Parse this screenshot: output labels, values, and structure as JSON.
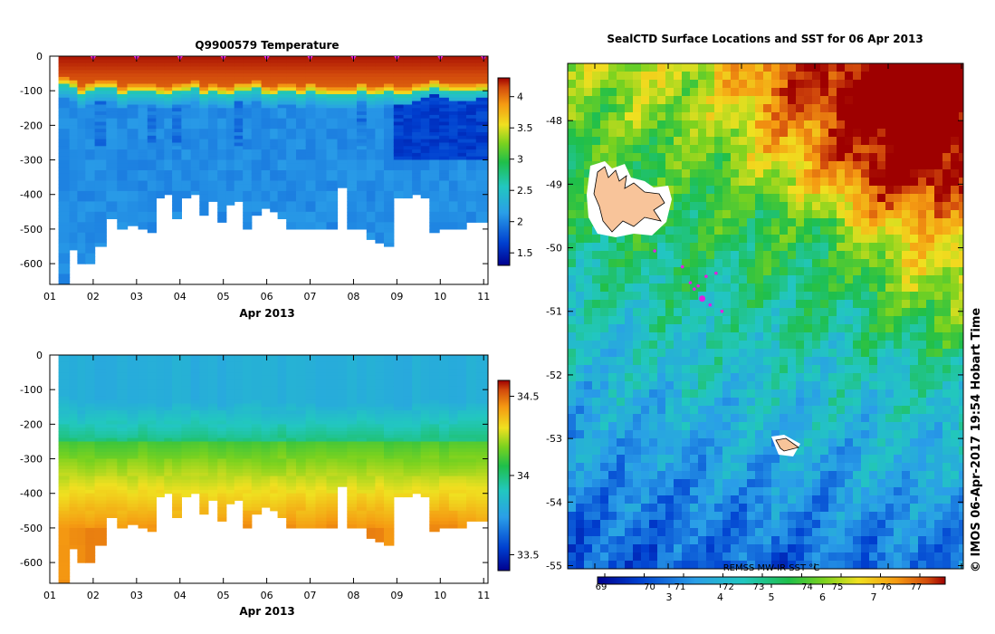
{
  "chart_data": [
    {
      "type": "heatmap",
      "title": "Q9900579  Temperature",
      "xlabel": "Apr 2013",
      "x_ticks": [
        "01",
        "02",
        "03",
        "04",
        "05",
        "06",
        "07",
        "08",
        "09",
        "10",
        "11"
      ],
      "y_ticks": [
        "0",
        "-100",
        "-200",
        "-300",
        "-400",
        "-500",
        "-600"
      ],
      "ylim": [
        -660,
        0
      ],
      "xlim": [
        1,
        11.1
      ],
      "colorbar": {
        "min": 1.3,
        "max": 4.3,
        "ticks": [
          "4",
          "3.5",
          "3",
          "2.5",
          "2",
          "1.5"
        ],
        "tick_values": [
          4,
          3.5,
          3,
          2.5,
          2,
          1.5
        ]
      },
      "profile_days": [
        1.35,
        1.55,
        1.72,
        1.92,
        2.15,
        2.45,
        2.65,
        2.92,
        3.15,
        3.35,
        3.55,
        3.72,
        3.92,
        4.15,
        4.35,
        4.55,
        4.75,
        4.98,
        5.15,
        5.35,
        5.55,
        5.75,
        6.0,
        6.15,
        6.35,
        6.55,
        6.8,
        7.0,
        7.25,
        7.5,
        7.75,
        7.95,
        8.2,
        8.4,
        8.6,
        8.8,
        9.05,
        9.25,
        9.45,
        9.65,
        9.85,
        10.1,
        10.3,
        10.5,
        10.7,
        10.95
      ],
      "profile_max_depth": [
        665,
        560,
        600,
        595,
        545,
        470,
        495,
        490,
        495,
        505,
        410,
        400,
        465,
        410,
        400,
        455,
        420,
        475,
        430,
        420,
        500,
        460,
        435,
        450,
        470,
        500,
        495,
        495,
        495,
        500,
        380,
        495,
        500,
        525,
        540,
        545,
        410,
        410,
        400,
        410,
        505,
        500,
        500,
        500,
        480,
        480
      ],
      "mixed_layer_depth": [
        80,
        85,
        110,
        95,
        90,
        90,
        110,
        100,
        100,
        100,
        105,
        110,
        100,
        95,
        90,
        110,
        100,
        105,
        110,
        95,
        95,
        90,
        105,
        110,
        100,
        100,
        110,
        95,
        105,
        110,
        110,
        110,
        95,
        110,
        105,
        100,
        110,
        110,
        100,
        95,
        85,
        95,
        100,
        100,
        100,
        95
      ],
      "deep_cold_layer": [
        [
          -160,
          -300,
          9.0,
          10.9
        ]
      ],
      "surface_markers": [
        2,
        3,
        4,
        5,
        6,
        7,
        8,
        9,
        10,
        11
      ]
    },
    {
      "type": "heatmap",
      "title": "",
      "xlabel": "Apr 2013",
      "x_ticks": [
        "01",
        "02",
        "03",
        "04",
        "05",
        "06",
        "07",
        "08",
        "09",
        "10",
        "11"
      ],
      "y_ticks": [
        "0",
        "-100",
        "-200",
        "-300",
        "-400",
        "-500",
        "-600"
      ],
      "ylim": [
        -660,
        0
      ],
      "xlim": [
        1,
        11.1
      ],
      "colorbar": {
        "min": 33.4,
        "max": 34.6,
        "ticks": [
          "34.5",
          "34",
          "33.5"
        ],
        "tick_values": [
          34.5,
          34,
          33.5
        ]
      }
    },
    {
      "type": "heatmap",
      "title": "SealCTD Surface Locations and SST for 06 Apr 2013",
      "y_ticks": [
        "-48",
        "-49",
        "-50",
        "-51",
        "-52",
        "-53",
        "-54",
        "-55"
      ],
      "y_tick_values": [
        -48,
        -49,
        -50,
        -51,
        -52,
        -53,
        -54,
        -55
      ],
      "ylim": [
        -55.05,
        -47.1
      ],
      "colorbar_label": "REMSS MW-IR SST °C",
      "colorbar_top_ticks": [
        "69",
        "70",
        "71",
        "72",
        "73",
        "74",
        "75",
        "76",
        "77"
      ],
      "colorbar_bottom_ticks": [
        "3",
        "4",
        "5",
        "6",
        "7"
      ],
      "colorbar_bottom_values": [
        3,
        4,
        5,
        6,
        7
      ],
      "colorbar_range": [
        1.6,
        8.4
      ],
      "seal_locations": [
        [
          0.22,
          -50.05
        ],
        [
          0.29,
          -50.3
        ],
        [
          0.31,
          -50.55
        ],
        [
          0.33,
          -50.6
        ],
        [
          0.34,
          -50.8
        ],
        [
          0.36,
          -50.9
        ],
        [
          0.32,
          -50.65
        ],
        [
          0.35,
          -50.45
        ],
        [
          0.39,
          -51.0
        ],
        [
          0.375,
          -50.4
        ]
      ],
      "credit": "© IMOS 06-Apr-2017 19:54 Hobart Time"
    }
  ]
}
